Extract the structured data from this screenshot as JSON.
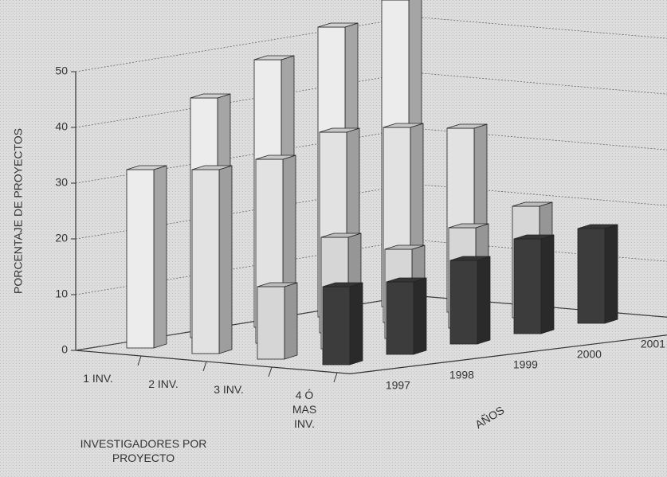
{
  "chart_data": {
    "type": "bar3d",
    "y_label": "PORCENTAJE DE PROYECTOS",
    "x_label": "INVESTIGADORES POR PROYECTO",
    "depth_label": "AÑOS",
    "categories": [
      "1 INV.",
      "2 INV.",
      "3 INV.",
      "4 Ó MAS INV."
    ],
    "depth_categories": [
      "1997",
      "1998",
      "1999",
      "2000",
      "2001"
    ],
    "series": [
      {
        "name": "1997",
        "values": [
          32,
          33,
          13,
          14
        ]
      },
      {
        "name": "1998",
        "values": [
          43,
          33,
          20,
          13
        ]
      },
      {
        "name": "1999",
        "values": [
          48,
          36,
          16,
          15
        ]
      },
      {
        "name": "2000",
        "values": [
          52,
          35,
          18,
          17
        ]
      },
      {
        "name": "2001",
        "values": [
          55,
          33,
          20,
          17
        ]
      }
    ],
    "category_colors": [
      "#ececec",
      "#e2e2e2",
      "#d6d6d6",
      "#3c3c3c"
    ],
    "ylim": [
      0,
      50
    ],
    "yticks": [
      0,
      10,
      20,
      30,
      40,
      50
    ],
    "grid": true
  }
}
